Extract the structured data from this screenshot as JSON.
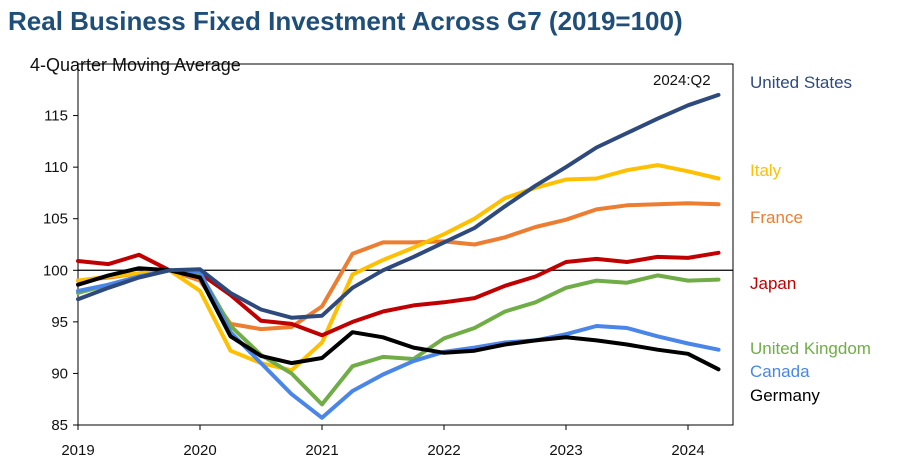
{
  "chart_data": {
    "type": "line",
    "title": "Real Business Fixed Investment Across G7 (2019=100)",
    "subtitle": "4-Quarter Moving Average",
    "annotation": "2024:Q2",
    "x_ticks": [
      "2019",
      "2020",
      "2021",
      "2022",
      "2023",
      "2024"
    ],
    "y_ticks": [
      "85",
      "90",
      "95",
      "100",
      "105",
      "110",
      "115"
    ],
    "ylim": [
      85,
      120
    ],
    "x_range": [
      "2019:Q1",
      "2024:Q2"
    ],
    "reference_line": 100,
    "quarters": [
      "2019:Q1",
      "2019:Q2",
      "2019:Q3",
      "2019:Q4",
      "2020:Q1",
      "2020:Q2",
      "2020:Q3",
      "2020:Q4",
      "2021:Q1",
      "2021:Q2",
      "2021:Q3",
      "2021:Q4",
      "2022:Q1",
      "2022:Q2",
      "2022:Q3",
      "2022:Q4",
      "2023:Q1",
      "2023:Q2",
      "2023:Q3",
      "2023:Q4",
      "2024:Q1",
      "2024:Q2"
    ],
    "series": [
      {
        "name": "United States",
        "color": "#2e4a7d",
        "values": [
          97.2,
          98.3,
          99.3,
          100.0,
          100.1,
          97.8,
          96.2,
          95.4,
          95.6,
          98.3,
          100.0,
          101.3,
          102.7,
          104.1,
          106.2,
          108.2,
          110.0,
          111.9,
          113.3,
          114.7,
          116.0,
          117.0
        ]
      },
      {
        "name": "Italy",
        "color": "#ffc000",
        "values": [
          99.0,
          99.4,
          99.7,
          100.0,
          98.0,
          92.2,
          91.0,
          90.3,
          93.0,
          99.6,
          101.0,
          102.2,
          103.5,
          105.0,
          107.0,
          108.0,
          108.8,
          108.9,
          109.7,
          110.2,
          109.6,
          108.9
        ]
      },
      {
        "name": "France",
        "color": "#ed7d31",
        "values": [
          99.0,
          99.3,
          99.7,
          100.0,
          99.0,
          94.8,
          94.3,
          94.5,
          96.5,
          101.6,
          102.7,
          102.7,
          102.8,
          102.5,
          103.2,
          104.2,
          104.9,
          105.9,
          106.3,
          106.4,
          106.5,
          106.4
        ]
      },
      {
        "name": "Japan",
        "color": "#c00000",
        "values": [
          100.9,
          100.6,
          101.5,
          100.0,
          99.7,
          97.6,
          95.1,
          94.8,
          93.7,
          95.0,
          96.0,
          96.6,
          96.9,
          97.3,
          98.5,
          99.4,
          100.8,
          101.1,
          100.8,
          101.3,
          101.2,
          101.7
        ]
      },
      {
        "name": "United Kingdom",
        "color": "#70ad47",
        "values": [
          97.8,
          98.6,
          99.4,
          100.0,
          99.7,
          94.6,
          91.8,
          90.0,
          87.0,
          90.7,
          91.6,
          91.4,
          93.4,
          94.4,
          96.0,
          96.9,
          98.3,
          99.0,
          98.8,
          99.5,
          99.0,
          99.1
        ]
      },
      {
        "name": "Canada",
        "color": "#4a86e8",
        "values": [
          98.0,
          98.6,
          99.4,
          100.0,
          99.8,
          94.0,
          91.0,
          88.0,
          85.7,
          88.3,
          89.9,
          91.2,
          92.1,
          92.5,
          93.0,
          93.2,
          93.8,
          94.6,
          94.4,
          93.6,
          92.9,
          92.3
        ]
      },
      {
        "name": "Germany",
        "color": "#000000",
        "values": [
          98.6,
          99.5,
          100.2,
          100.0,
          99.3,
          93.6,
          91.7,
          91.0,
          91.5,
          94.0,
          93.5,
          92.5,
          92.0,
          92.2,
          92.8,
          93.2,
          93.5,
          93.2,
          92.8,
          92.3,
          91.9,
          90.4
        ]
      }
    ]
  },
  "legend": [
    {
      "name": "United States",
      "color": "#2e4a7d"
    },
    {
      "name": "Italy",
      "color": "#ffc000"
    },
    {
      "name": "France",
      "color": "#ed7d31"
    },
    {
      "name": "Japan",
      "color": "#c00000"
    },
    {
      "name": "United Kingdom",
      "color": "#70ad47"
    },
    {
      "name": "Canada",
      "color": "#4a86e8"
    },
    {
      "name": "Germany",
      "color": "#000000"
    }
  ]
}
